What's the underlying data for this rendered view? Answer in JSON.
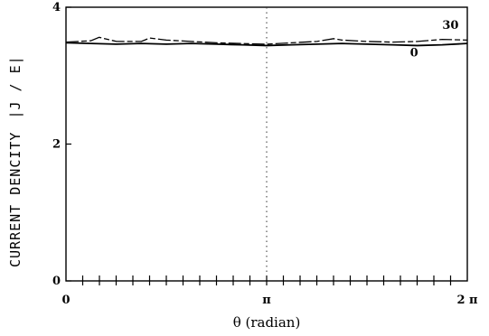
{
  "chart_data": {
    "type": "line",
    "title": "",
    "xlabel": "θ (radian)",
    "ylabel": "CURRENT DENCITY",
    "ylabel_unit": "|J / E|",
    "xlim": [
      0,
      6.2832
    ],
    "ylim": [
      0,
      4
    ],
    "x_ticks": [
      {
        "value": 0,
        "label": "0"
      },
      {
        "value": 3.1416,
        "label": "π"
      },
      {
        "value": 6.2832,
        "label": "2 π"
      }
    ],
    "y_ticks": [
      {
        "value": 0,
        "label": "0"
      },
      {
        "value": 2,
        "label": "2"
      },
      {
        "value": 4,
        "label": "4"
      }
    ],
    "grid": false,
    "reference_line": {
      "x": 3.1416,
      "style": "dotted"
    },
    "series": [
      {
        "name": "0",
        "x": [
          0,
          0.39,
          0.79,
          1.18,
          1.57,
          1.96,
          2.36,
          2.75,
          3.14,
          3.53,
          3.93,
          4.32,
          4.71,
          5.11,
          5.5,
          5.89,
          6.28
        ],
        "y": [
          3.48,
          3.47,
          3.46,
          3.47,
          3.46,
          3.47,
          3.46,
          3.45,
          3.44,
          3.45,
          3.46,
          3.47,
          3.46,
          3.45,
          3.44,
          3.45,
          3.47
        ]
      },
      {
        "name": "30",
        "x": [
          0,
          0.39,
          0.52,
          0.79,
          1.18,
          1.31,
          1.57,
          1.96,
          2.36,
          2.75,
          3.14,
          3.53,
          3.93,
          4.19,
          4.32,
          4.71,
          5.11,
          5.5,
          5.89,
          6.28
        ],
        "y": [
          3.49,
          3.51,
          3.56,
          3.5,
          3.5,
          3.55,
          3.52,
          3.5,
          3.48,
          3.47,
          3.46,
          3.48,
          3.5,
          3.54,
          3.52,
          3.5,
          3.49,
          3.5,
          3.53,
          3.52
        ]
      }
    ],
    "annotations": [
      {
        "text": "30",
        "x": 6.02,
        "y": 3.68
      },
      {
        "text": "0",
        "x": 5.45,
        "y": 3.28
      }
    ]
  }
}
